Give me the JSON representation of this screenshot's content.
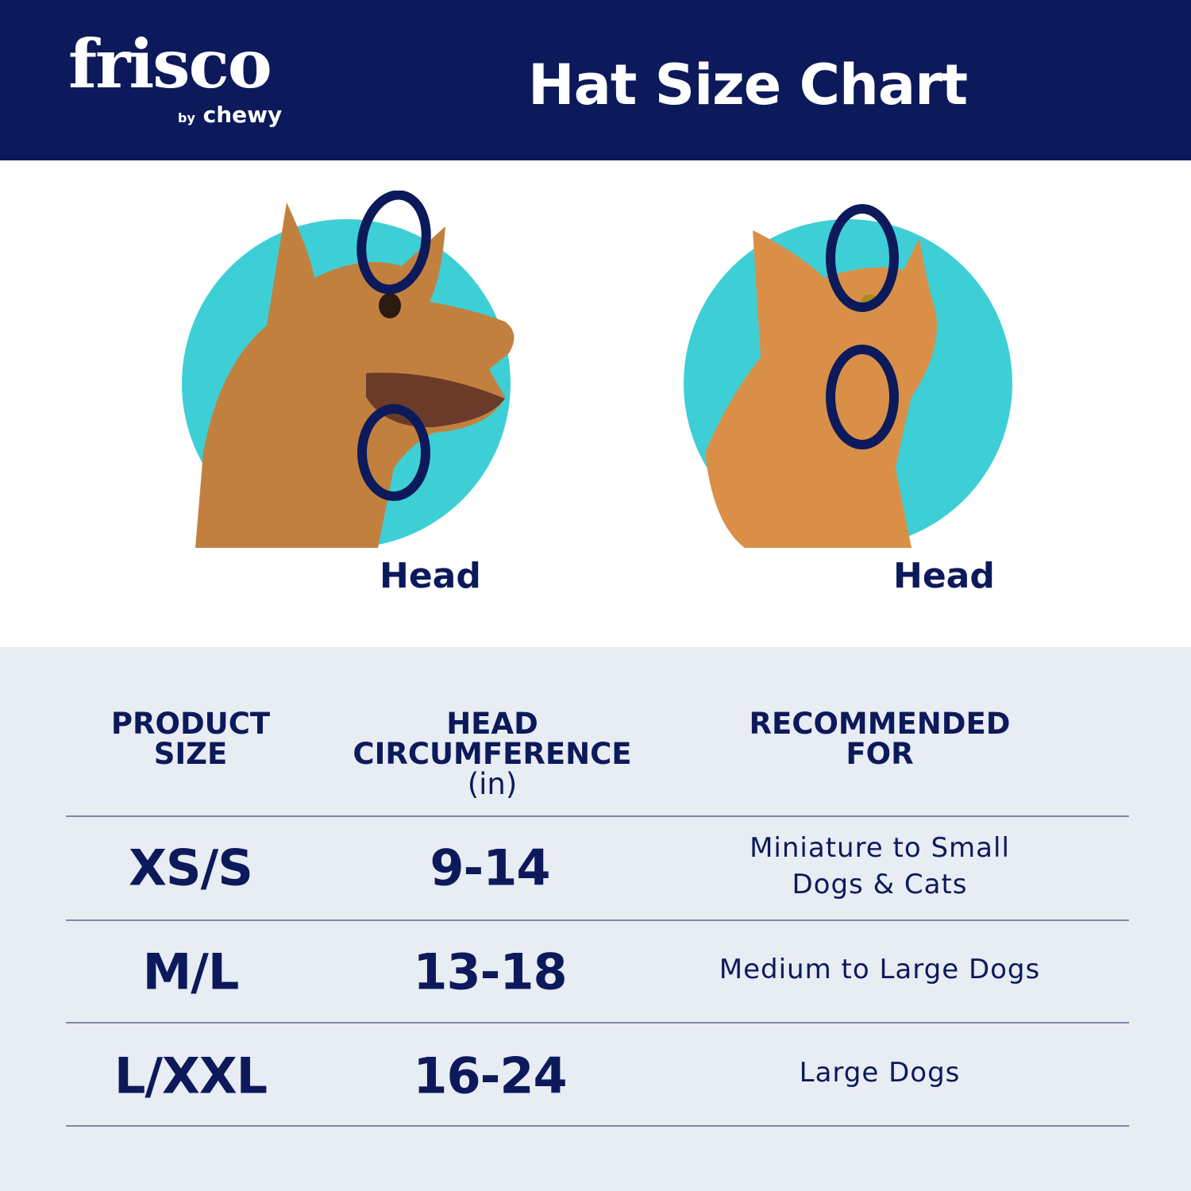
{
  "header": {
    "brand": "frisco",
    "brand_sub_by": "by",
    "brand_sub": "chewy",
    "title": "Hat Size Chart"
  },
  "illustrations": [
    {
      "animal": "dog",
      "label": "Head"
    },
    {
      "animal": "cat",
      "label": "Head"
    }
  ],
  "colors": {
    "navy": "#0c1a5b",
    "teal": "#3ecfd6",
    "table_bg": "#e8ecf3"
  },
  "table": {
    "headers": [
      {
        "line1": "PRODUCT",
        "line2": "SIZE"
      },
      {
        "line1": "HEAD",
        "line2": "CIRCUMFERENCE",
        "line3": "(in)"
      },
      {
        "line1": "RECOMMENDED",
        "line2": "FOR"
      }
    ],
    "rows": [
      {
        "size": "XS/S",
        "circumference": "9-14",
        "recommended_line1": "Miniature to Small",
        "recommended_line2": "Dogs & Cats"
      },
      {
        "size": "M/L",
        "circumference": "13-18",
        "recommended_line1": "Medium to Large Dogs",
        "recommended_line2": ""
      },
      {
        "size": "L/XXL",
        "circumference": "16-24",
        "recommended_line1": "Large Dogs",
        "recommended_line2": ""
      }
    ]
  }
}
